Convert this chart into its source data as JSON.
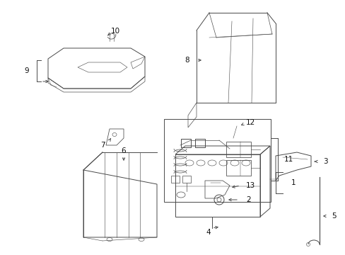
{
  "bg_color": "#ffffff",
  "line_color": "#4a4a4a",
  "fig_width": 4.89,
  "fig_height": 3.6,
  "dpi": 100,
  "label_fs": 7.5,
  "lw": 0.7
}
